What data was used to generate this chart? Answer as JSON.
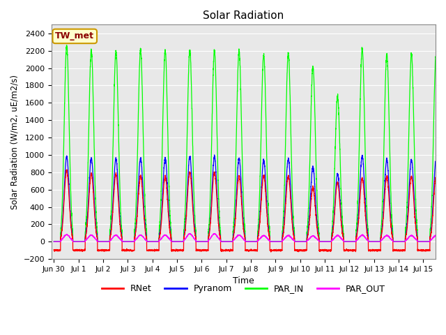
{
  "title": "Solar Radiation",
  "ylabel": "Solar Radiation (W/m2, uE/m2/s)",
  "xlabel": "Time",
  "ylim": [
    -200,
    2500
  ],
  "yticks": [
    -200,
    0,
    200,
    400,
    600,
    800,
    1000,
    1200,
    1400,
    1600,
    1800,
    2000,
    2200,
    2400
  ],
  "num_days": 16,
  "xtick_labels": [
    "Jun 30",
    "Jul 1",
    "Jul 2",
    "Jul 3",
    "Jul 4",
    "Jul 5",
    "Jul 6",
    "Jul 7",
    "Jul 8",
    "Jul 9",
    "Jul 10",
    "Jul 11",
    "Jul 12",
    "Jul 13",
    "Jul 14",
    "Jul 15"
  ],
  "annotation_text": "TW_met",
  "annotation_bg": "#ffffcc",
  "annotation_border": "#cc9900",
  "bg_color": "#e8e8e8",
  "grid_color": "white",
  "colors": {
    "RNet": "red",
    "Pyranom": "blue",
    "PAR_IN": "lime",
    "PAR_OUT": "magenta"
  },
  "day_peaks_PAR_IN": [
    2260,
    2200,
    2200,
    2200,
    2200,
    2210,
    2200,
    2200,
    2150,
    2170,
    2020,
    1670,
    2220,
    2160,
    2160,
    2160
  ],
  "day_peaks_Pyranom": [
    980,
    960,
    960,
    960,
    960,
    980,
    980,
    960,
    940,
    955,
    860,
    780,
    990,
    945,
    945,
    945
  ],
  "day_peaks_RNet": [
    820,
    780,
    780,
    760,
    750,
    800,
    800,
    760,
    760,
    755,
    620,
    680,
    730,
    750,
    750,
    750
  ],
  "day_peaks_PAR_OUT": [
    80,
    75,
    75,
    75,
    75,
    90,
    90,
    75,
    70,
    70,
    65,
    70,
    75,
    70,
    70,
    70
  ],
  "night_RNet": -100,
  "pts_per_day": 288
}
